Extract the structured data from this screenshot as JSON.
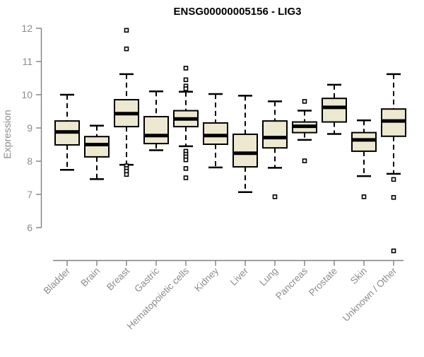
{
  "title": "ENSG00000005156 - LIG3",
  "chart_data": {
    "type": "boxplot",
    "title": "ENSG00000005156 - LIG3",
    "xlabel": "",
    "ylabel": "Expression",
    "y_ticks": [
      6,
      7,
      8,
      9,
      10,
      11,
      12
    ],
    "y_axis_range": [
      6,
      12
    ],
    "ylim": [
      5.2,
      12.0
    ],
    "grid": false,
    "legend": "none",
    "whisker_style": "dashed",
    "outlier_marker": "open-square",
    "categories": [
      "Bladder",
      "Brain",
      "Breast",
      "Gastric",
      "Hematopoietic cells",
      "Kidney",
      "Liver",
      "Lung",
      "Pancreas",
      "Prostate",
      "Skin",
      "Unknown / Other"
    ],
    "boxes": [
      {
        "category": "Bladder",
        "whisker_low": 7.74,
        "q1": 8.49,
        "median": 8.88,
        "q3": 9.21,
        "whisker_high": 10.0,
        "outliers": []
      },
      {
        "category": "Brain",
        "whisker_low": 7.46,
        "q1": 8.13,
        "median": 8.5,
        "q3": 8.74,
        "whisker_high": 9.07,
        "outliers": []
      },
      {
        "category": "Breast",
        "whisker_low": 7.89,
        "q1": 9.04,
        "median": 9.43,
        "q3": 9.85,
        "whisker_high": 10.62,
        "outliers": [
          11.94,
          11.38,
          7.86,
          7.78,
          7.7,
          7.6
        ]
      },
      {
        "category": "Gastric",
        "whisker_low": 8.33,
        "q1": 8.53,
        "median": 8.77,
        "q3": 9.34,
        "whisker_high": 10.1,
        "outliers": []
      },
      {
        "category": "Hematopoietic cells",
        "whisker_low": 8.45,
        "q1": 9.04,
        "median": 9.27,
        "q3": 9.52,
        "whisker_high": 10.09,
        "outliers": [
          10.8,
          10.45,
          10.26,
          10.18,
          8.3,
          8.21,
          8.13,
          8.04,
          7.78,
          7.5
        ]
      },
      {
        "category": "Kidney",
        "whisker_low": 7.81,
        "q1": 8.51,
        "median": 8.77,
        "q3": 9.15,
        "whisker_high": 10.02,
        "outliers": []
      },
      {
        "category": "Liver",
        "whisker_low": 7.07,
        "q1": 7.83,
        "median": 8.24,
        "q3": 8.81,
        "whisker_high": 9.97,
        "outliers": []
      },
      {
        "category": "Lung",
        "whisker_low": 7.8,
        "q1": 8.4,
        "median": 8.71,
        "q3": 9.21,
        "whisker_high": 9.8,
        "outliers": [
          6.93
        ]
      },
      {
        "category": "Pancreas",
        "whisker_low": 8.64,
        "q1": 8.86,
        "median": 9.05,
        "q3": 9.18,
        "whisker_high": 9.52,
        "outliers": [
          9.8,
          8.01
        ]
      },
      {
        "category": "Prostate",
        "whisker_low": 8.82,
        "q1": 9.18,
        "median": 9.62,
        "q3": 9.89,
        "whisker_high": 10.3,
        "outliers": []
      },
      {
        "category": "Skin",
        "whisker_low": 7.55,
        "q1": 8.3,
        "median": 8.64,
        "q3": 8.86,
        "whisker_high": 9.23,
        "outliers": [
          6.93
        ]
      },
      {
        "category": "Unknown / Other",
        "whisker_low": 7.62,
        "q1": 8.75,
        "median": 9.21,
        "q3": 9.57,
        "whisker_high": 10.62,
        "outliers": [
          7.45,
          6.91,
          5.3
        ]
      }
    ],
    "colors": {
      "background": "#ffffff",
      "box_fill": "#ede8d0",
      "box_border": "#000000",
      "median_line": "#000000",
      "whisker": "#000000",
      "outlier": "#000000",
      "axis_line": "#808080",
      "tick_label": "#8c8c8c",
      "title_color": "#000000"
    }
  }
}
